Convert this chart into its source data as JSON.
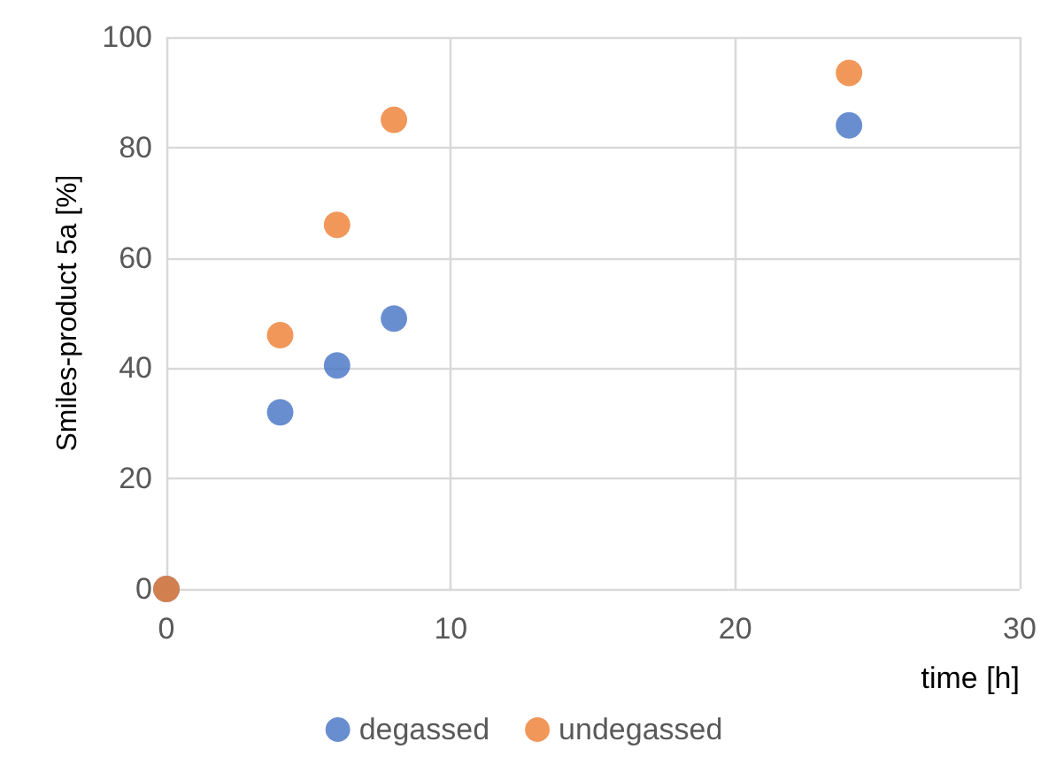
{
  "chart_data": {
    "type": "scatter",
    "xlabel": "time [h]",
    "ylabel": "Smiles-product 5a [%]",
    "series": [
      {
        "name": "degassed",
        "color": "#4472c4",
        "x": [
          0,
          4,
          6,
          8,
          24
        ],
        "values": [
          0,
          32,
          40.5,
          49,
          84
        ]
      },
      {
        "name": "undegassed",
        "color": "#ed7d31",
        "x": [
          0,
          4,
          6,
          8,
          24
        ],
        "values": [
          0,
          46,
          66,
          85,
          93.5
        ]
      }
    ],
    "xlim": [
      0,
      30
    ],
    "xticks": [
      0,
      10,
      20,
      30
    ],
    "ylim": [
      0,
      100
    ],
    "yticks": [
      0,
      20,
      40,
      60,
      80,
      100
    ],
    "grid": true,
    "legend": "bottom",
    "marker": "circle"
  }
}
